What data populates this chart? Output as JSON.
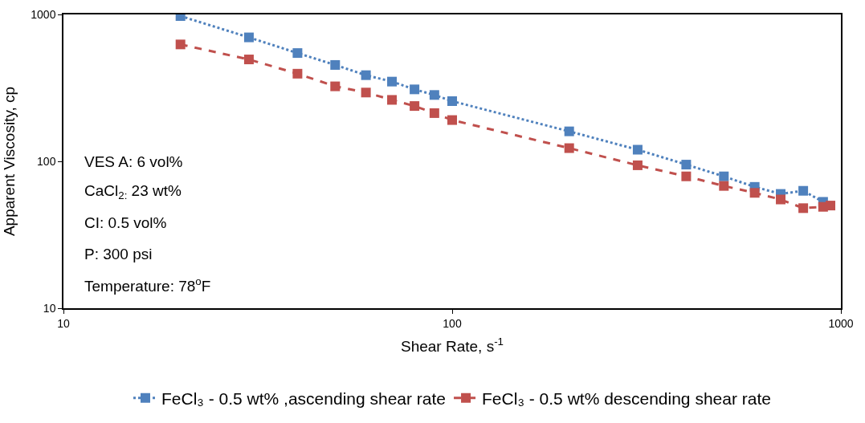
{
  "chart_data": {
    "type": "line",
    "xlabel": "Shear Rate, s$^{-1}$",
    "ylabel": "Apparent Viscosity, cp",
    "log": "xy",
    "xlim": [
      10,
      1000
    ],
    "ylim": [
      10,
      1000
    ],
    "xticks": [
      10,
      100,
      1000
    ],
    "yticks": [
      10,
      100,
      1000
    ],
    "grid": false,
    "legend": "bottom",
    "marker": "square",
    "series": [
      {
        "name": "FeCl₃ - 0.5 wt% ,ascending shear rate",
        "color": "#4f81bd",
        "line_style": "dotted",
        "x": [
          20,
          30,
          40,
          50,
          60,
          70,
          80,
          90,
          100,
          200,
          300,
          400,
          500,
          600,
          700,
          800,
          900
        ],
        "values": [
          975,
          698,
          546,
          453,
          386,
          349,
          309,
          283,
          257,
          160,
          120,
          95,
          79,
          67,
          60,
          63,
          53
        ]
      },
      {
        "name": "FeCl₃ - 0.5 wt% descending shear rate",
        "color": "#c0504d",
        "line_style": "dashed",
        "x": [
          20,
          30,
          40,
          50,
          60,
          70,
          80,
          90,
          100,
          200,
          300,
          400,
          500,
          600,
          700,
          800,
          900,
          940
        ],
        "values": [
          625,
          494,
          395,
          324,
          294,
          262,
          238,
          213,
          191,
          123,
          94,
          79,
          68,
          61,
          55,
          48,
          49,
          50
        ]
      }
    ],
    "annotations": [
      "VES A: 6 vol%",
      "CaCl$_{2:}$ 23 wt%",
      "CI: 0.5 vol%",
      "P: 300 psi",
      "Temperature: 78$^{o}$F"
    ]
  }
}
